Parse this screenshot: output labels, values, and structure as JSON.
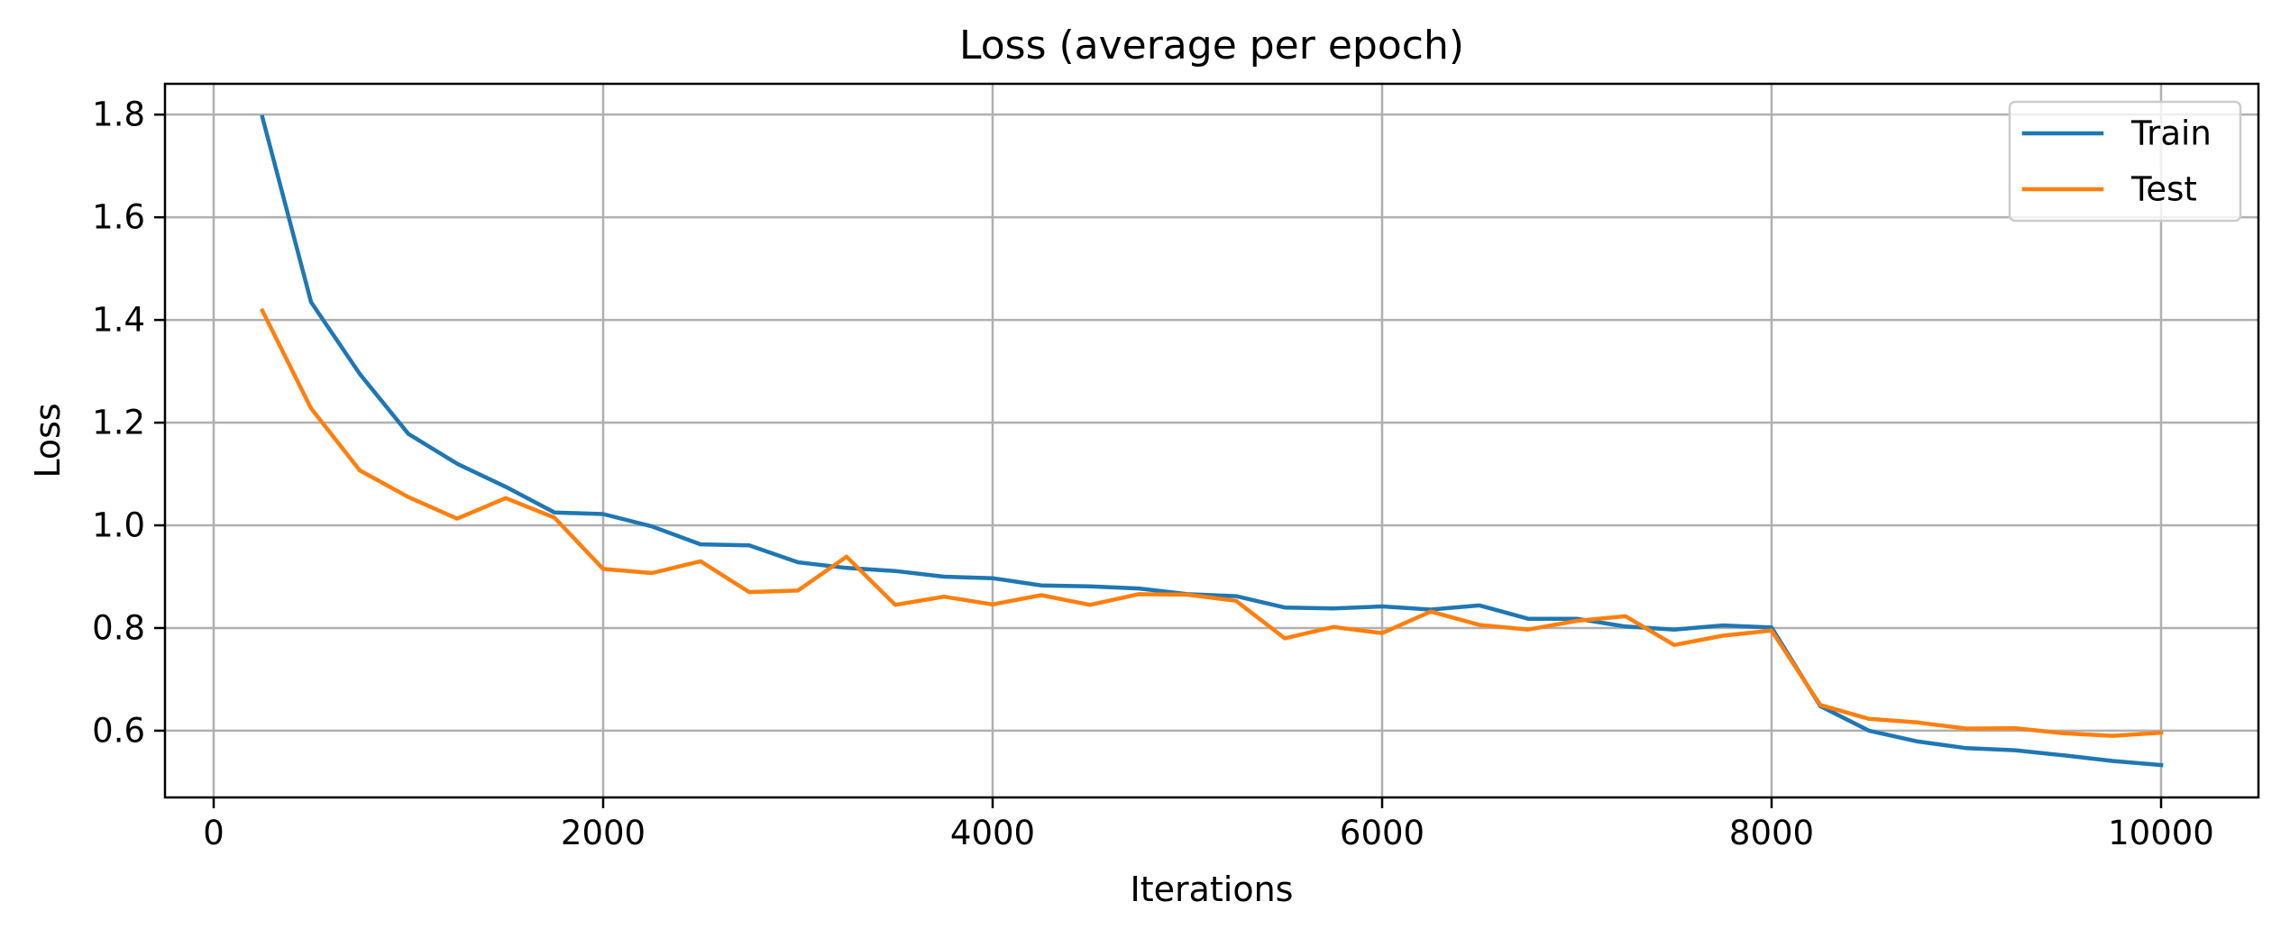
{
  "chart_data": {
    "type": "line",
    "title": "Loss (average per epoch)",
    "xlabel": "Iterations",
    "ylabel": "Loss",
    "xlim": [
      -250,
      10500
    ],
    "ylim": [
      0.47,
      1.86
    ],
    "xticks": [
      0,
      2000,
      4000,
      6000,
      8000,
      10000
    ],
    "xtick_labels": [
      "0",
      "2000",
      "4000",
      "6000",
      "8000",
      "10000"
    ],
    "yticks": [
      0.6,
      0.8,
      1.0,
      1.2,
      1.4,
      1.6,
      1.8
    ],
    "ytick_labels": [
      "0.6",
      "0.8",
      "1.0",
      "1.2",
      "1.4",
      "1.6",
      "1.8"
    ],
    "grid": true,
    "legend_position": "upper right",
    "x": [
      250,
      500,
      750,
      1000,
      1250,
      1500,
      1750,
      2000,
      2250,
      2500,
      2750,
      3000,
      3250,
      3500,
      3750,
      4000,
      4250,
      4500,
      4750,
      5000,
      5250,
      5500,
      5750,
      6000,
      6250,
      6500,
      6750,
      7000,
      7250,
      7500,
      7750,
      8000,
      8250,
      8500,
      8750,
      9000,
      9250,
      9500,
      9750,
      10000
    ],
    "series": [
      {
        "name": "Train",
        "color": "#1f77b4",
        "values": [
          1.795,
          1.435,
          1.295,
          1.178,
          1.12,
          1.075,
          1.025,
          1.022,
          0.998,
          0.963,
          0.961,
          0.928,
          0.917,
          0.911,
          0.9,
          0.897,
          0.883,
          0.881,
          0.877,
          0.866,
          0.862,
          0.84,
          0.838,
          0.842,
          0.836,
          0.844,
          0.818,
          0.818,
          0.803,
          0.797,
          0.805,
          0.801,
          0.648,
          0.6,
          0.579,
          0.566,
          0.562,
          0.552,
          0.541,
          0.533
        ]
      },
      {
        "name": "Test",
        "color": "#ff7f0e",
        "values": [
          1.418,
          1.228,
          1.107,
          1.055,
          1.013,
          1.053,
          1.015,
          0.915,
          0.907,
          0.93,
          0.87,
          0.873,
          0.939,
          0.845,
          0.861,
          0.846,
          0.864,
          0.845,
          0.866,
          0.865,
          0.853,
          0.78,
          0.802,
          0.79,
          0.832,
          0.806,
          0.797,
          0.814,
          0.823,
          0.767,
          0.785,
          0.795,
          0.65,
          0.623,
          0.616,
          0.604,
          0.605,
          0.595,
          0.59,
          0.596
        ]
      }
    ]
  }
}
